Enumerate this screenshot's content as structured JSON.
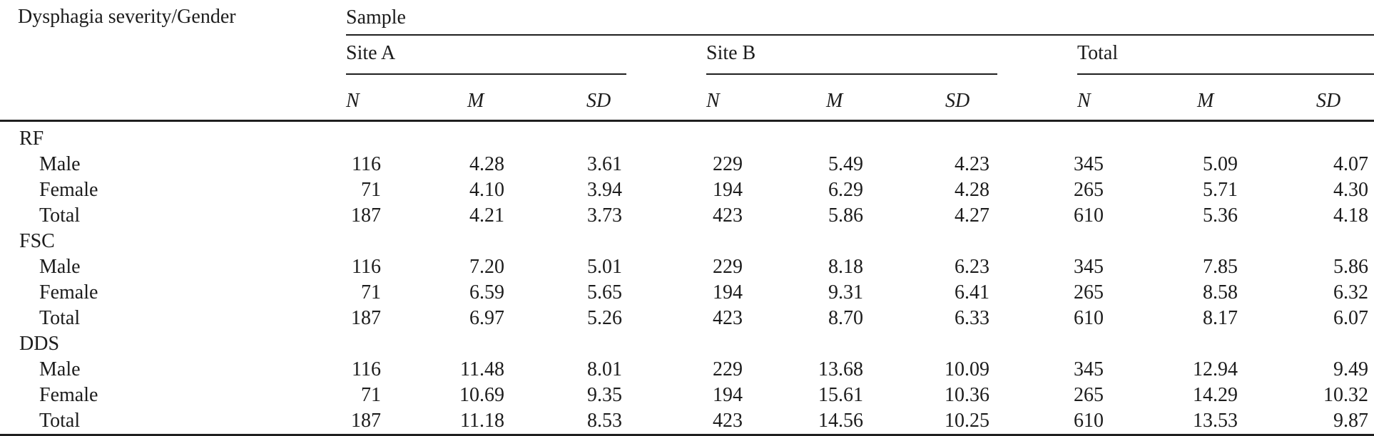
{
  "page": {
    "background": "#ffffff",
    "text_color": "#1c1c1c",
    "rule_color": "#1f1f1f"
  },
  "table": {
    "corner_label": "Dysphagia severity/Gender",
    "span_label": "Sample",
    "groups": [
      {
        "label": "Site A",
        "sub_headers": [
          "N",
          "M",
          "SD"
        ]
      },
      {
        "label": "Site B",
        "sub_headers": [
          "N",
          "M",
          "SD"
        ]
      },
      {
        "label": "Total",
        "sub_headers": [
          "N",
          "M",
          "SD"
        ]
      }
    ],
    "rows": [
      {
        "label": "RF",
        "type": "section"
      },
      {
        "label": "Male",
        "type": "data",
        "values": [
          "116",
          "4.28",
          "3.61",
          "229",
          "5.49",
          "4.23",
          "345",
          "5.09",
          "4.07"
        ]
      },
      {
        "label": "Female",
        "type": "data",
        "values": [
          "71",
          "4.10",
          "3.94",
          "194",
          "6.29",
          "4.28",
          "265",
          "5.71",
          "4.30"
        ]
      },
      {
        "label": "Total",
        "type": "data",
        "values": [
          "187",
          "4.21",
          "3.73",
          "423",
          "5.86",
          "4.27",
          "610",
          "5.36",
          "4.18"
        ]
      },
      {
        "label": "FSC",
        "type": "section"
      },
      {
        "label": "Male",
        "type": "data",
        "values": [
          "116",
          "7.20",
          "5.01",
          "229",
          "8.18",
          "6.23",
          "345",
          "7.85",
          "5.86"
        ]
      },
      {
        "label": "Female",
        "type": "data",
        "values": [
          "71",
          "6.59",
          "5.65",
          "194",
          "9.31",
          "6.41",
          "265",
          "8.58",
          "6.32"
        ]
      },
      {
        "label": "Total",
        "type": "data",
        "values": [
          "187",
          "6.97",
          "5.26",
          "423",
          "8.70",
          "6.33",
          "610",
          "8.17",
          "6.07"
        ]
      },
      {
        "label": "DDS",
        "type": "section"
      },
      {
        "label": "Male",
        "type": "data",
        "values": [
          "116",
          "11.48",
          "8.01",
          "229",
          "13.68",
          "10.09",
          "345",
          "12.94",
          "9.49"
        ]
      },
      {
        "label": "Female",
        "type": "data",
        "values": [
          "71",
          "10.69",
          "9.35",
          "194",
          "15.61",
          "10.36",
          "265",
          "14.29",
          "10.32"
        ]
      },
      {
        "label": "Total",
        "type": "data",
        "values": [
          "187",
          "11.18",
          "8.53",
          "423",
          "14.56",
          "10.25",
          "610",
          "13.53",
          "9.87"
        ]
      }
    ]
  }
}
